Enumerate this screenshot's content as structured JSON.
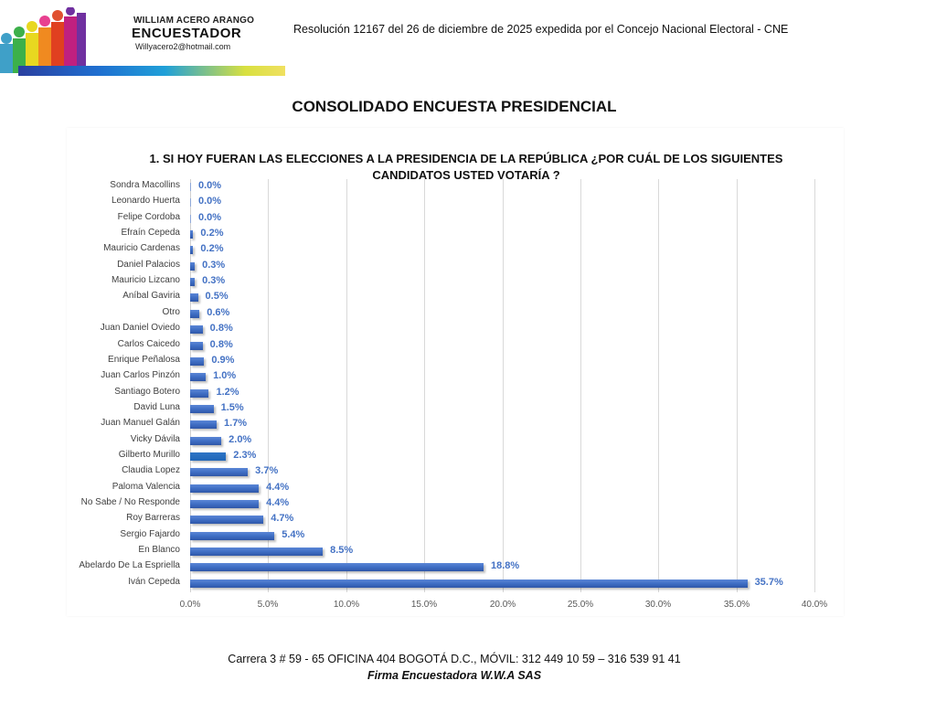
{
  "header": {
    "logo_name": "WILLIAM ACERO ARANGO",
    "logo_title": "ENCUESTADOR",
    "logo_email": "Willyacero2@hotmail.com",
    "resolution": "Resolución 12167 del 26 de diciembre de 2025 expedida por el Concejo Nacional Electoral - CNE"
  },
  "main_title": "CONSOLIDADO ENCUESTA PRESIDENCIAL",
  "footer": {
    "address": "Carrera  3 # 59 - 65  OFICINA  404 BOGOTÁ D.C.,  MÓVIL: 312 449 10 59 – 316 539 91 41",
    "firm": "Firma Encuestadora W.W.A SAS"
  },
  "colors": {
    "bar": "#4472c4",
    "label": "#4472c4",
    "grid": "#d9d9d9"
  },
  "chart_data": {
    "type": "bar",
    "orientation": "horizontal",
    "title_line1": "1. SI HOY FUERAN LAS ELECCIONES A LA PRESIDENCIA DE LA REPÚBLICA ¿POR CUÁL DE LOS SIGUIENTES",
    "title_line2": "CANDIDATOS USTED VOTARÍA ?",
    "title": "1. SI HOY FUERAN LAS ELECCIONES A LA PRESIDENCIA DE LA REPÚBLICA ¿POR CUÁL DE LOS SIGUIENTES CANDIDATOS USTED VOTARÍA ?",
    "xlabel": "",
    "ylabel": "",
    "xlim": [
      0,
      40
    ],
    "grid": true,
    "legend": "none",
    "x_ticks": [
      "0.0%",
      "5.0%",
      "10.0%",
      "15.0%",
      "20.0%",
      "25.0%",
      "30.0%",
      "35.0%",
      "40.0%"
    ],
    "categories": [
      "Sondra Macollins",
      "Leonardo Huerta",
      "Felipe Cordoba",
      "Efraín Cepeda",
      "Mauricio Cardenas",
      "Daniel Palacios",
      "Mauricio Lizcano",
      "Aníbal Gaviria",
      "Otro",
      "Juan Daniel Oviedo",
      "Carlos Caicedo",
      "Enrique Peñalosa",
      "Juan Carlos Pinzón",
      "Santiago Botero",
      "David Luna",
      "Juan Manuel Galán",
      "Vicky Dávila",
      "Gilberto Murillo",
      "Claudia Lopez",
      "Paloma Valencia",
      "No Sabe / No Responde",
      "Roy Barreras",
      "Sergio Fajardo",
      "En Blanco",
      "Abelardo De La Espriella",
      "Iván Cepeda"
    ],
    "values": [
      0.0,
      0.0,
      0.0,
      0.2,
      0.2,
      0.3,
      0.3,
      0.5,
      0.6,
      0.8,
      0.8,
      0.9,
      1.0,
      1.2,
      1.5,
      1.7,
      2.0,
      2.3,
      3.7,
      4.4,
      4.4,
      4.7,
      5.4,
      8.5,
      18.8,
      35.7
    ],
    "value_labels": [
      "0.0%",
      "0.0%",
      "0.0%",
      "0.2%",
      "0.2%",
      "0.3%",
      "0.3%",
      "0.5%",
      "0.6%",
      "0.8%",
      "0.8%",
      "0.9%",
      "1.0%",
      "1.2%",
      "1.5%",
      "1.7%",
      "2.0%",
      "2.3%",
      "3.7%",
      "4.4%",
      "4.4%",
      "4.7%",
      "5.4%",
      "8.5%",
      "18.8%",
      "35.7%"
    ]
  }
}
